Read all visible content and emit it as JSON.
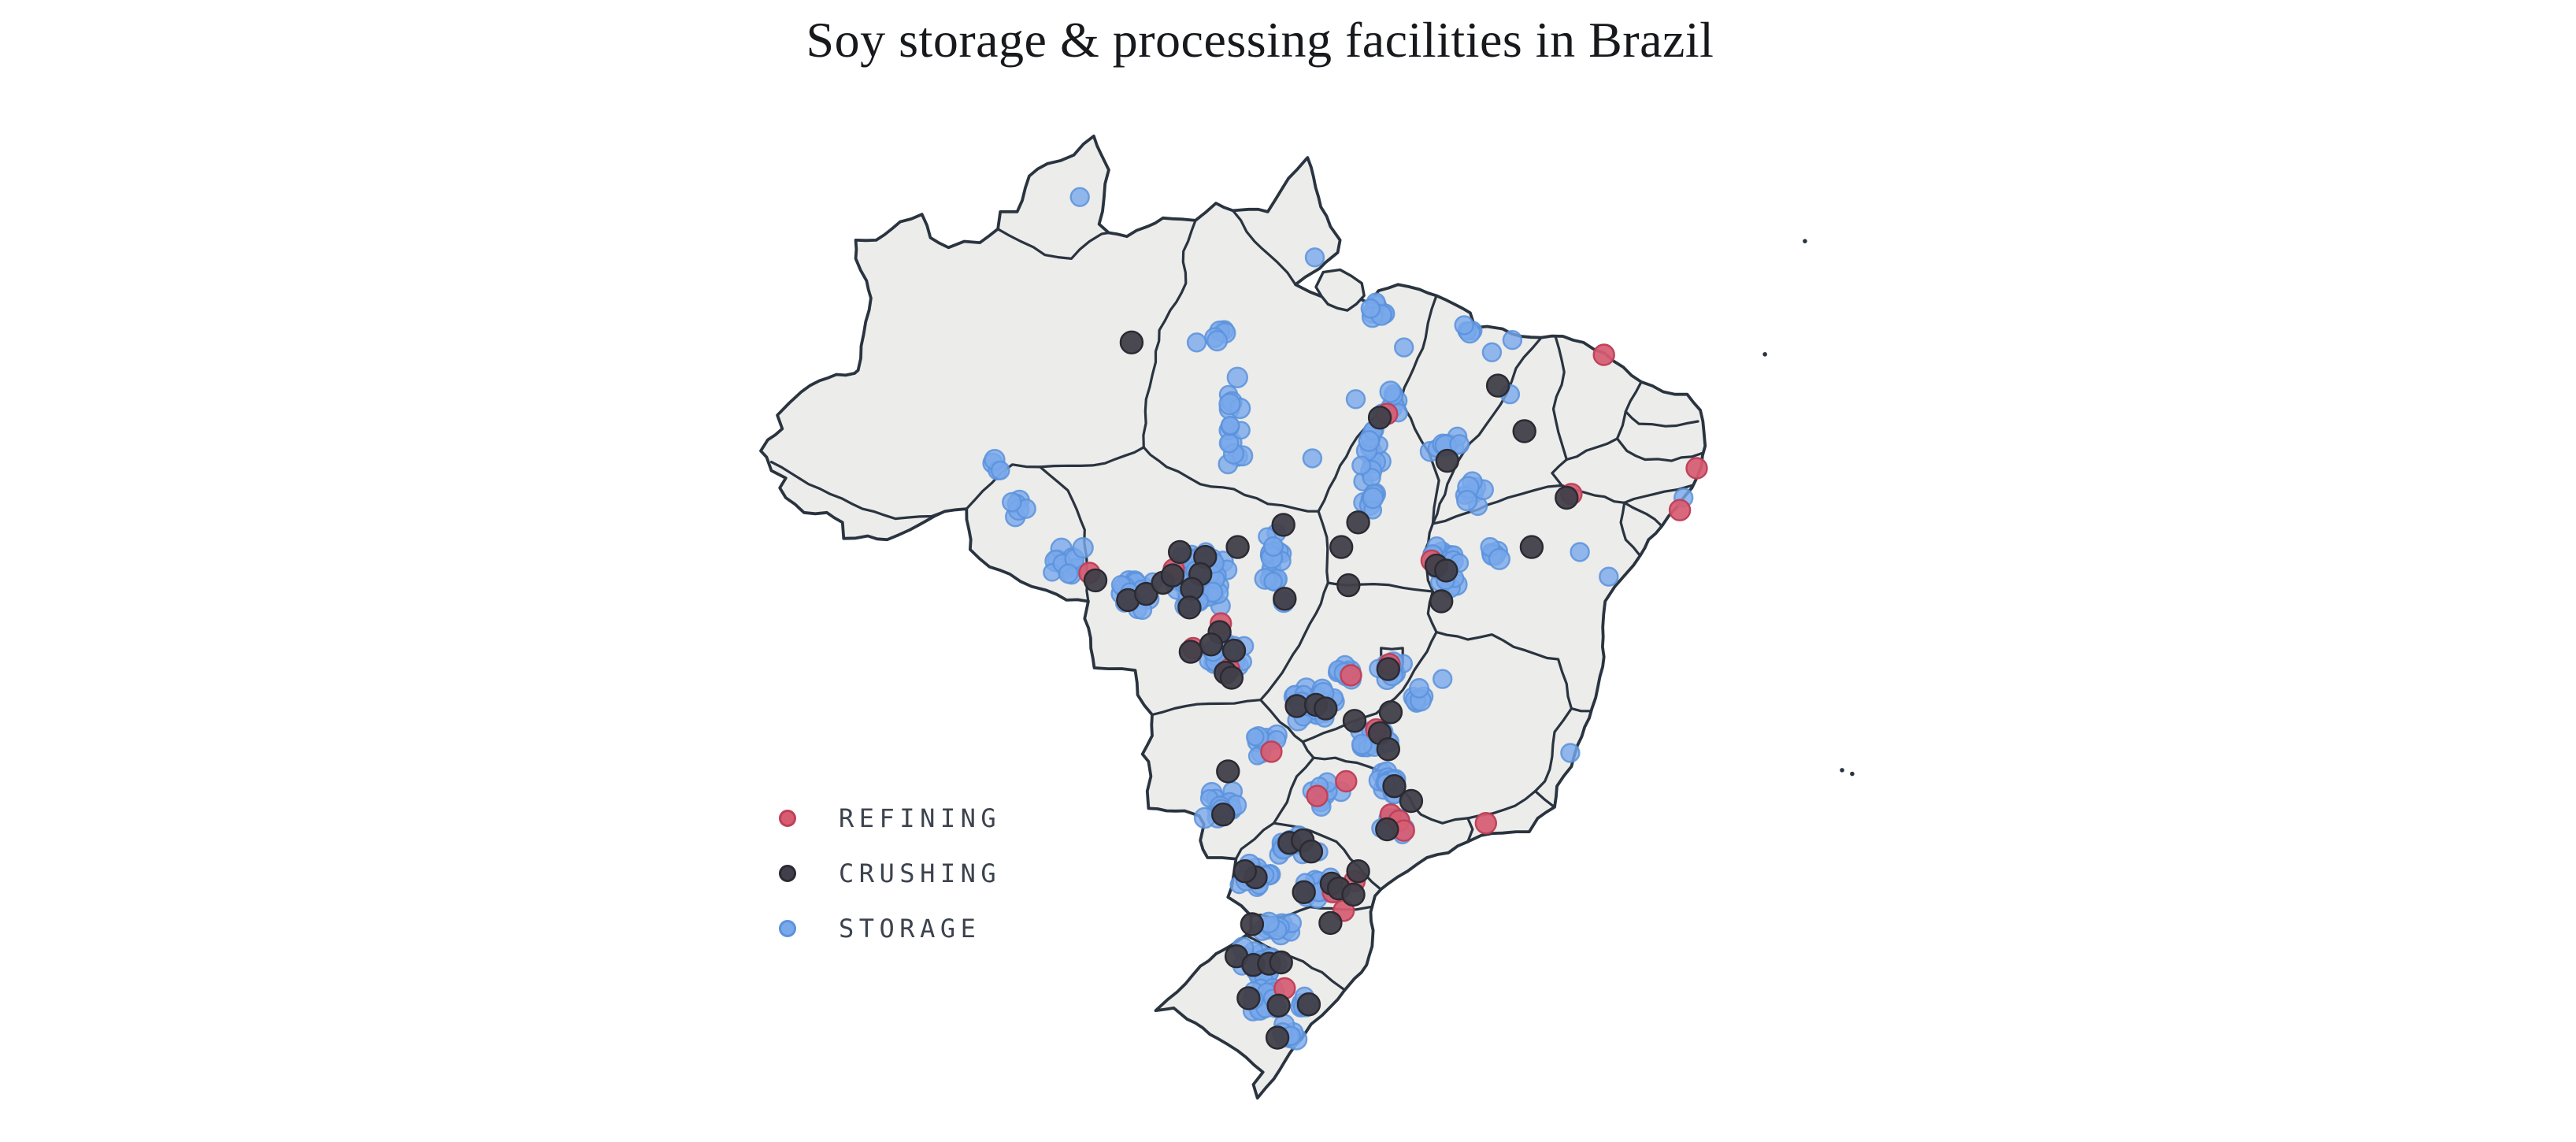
{
  "title": "Soy storage & processing facilities in Brazil",
  "colors": {
    "background": "#ffffff",
    "land": "#ECECEA",
    "state_border": "#2A3440",
    "title_text": "#17191D",
    "legend_text": "#3C434E"
  },
  "legend": {
    "position": "bottom-left",
    "items": [
      "REFINING",
      "CRUSHING",
      "STORAGE"
    ]
  },
  "chart_data": {
    "type": "scatter",
    "subtype": "dot-map",
    "basemap": "Brazil with state boundaries and offshore islands",
    "title": "Soy storage & processing facilities in Brazil",
    "grid": false,
    "series": [
      {
        "name": "REFINING",
        "color": "#D75C72",
        "stroke": "#BE4058",
        "radius": 13,
        "opacity": 0.93,
        "points": [
          [
            -60.35,
            -12.45
          ],
          [
            -56.85,
            -12.3
          ],
          [
            -54.9,
            -14.5
          ],
          [
            -56.05,
            -15.5
          ],
          [
            -54.55,
            -16.35
          ],
          [
            -48.0,
            -6.0
          ],
          [
            -46.15,
            -11.95
          ],
          [
            -40.35,
            -9.25
          ],
          [
            -39.0,
            -3.6
          ],
          [
            -35.15,
            -8.2
          ],
          [
            -35.85,
            -9.9
          ],
          [
            -49.5,
            -16.6
          ],
          [
            -47.9,
            -16.15
          ],
          [
            -48.45,
            -18.8
          ],
          [
            -52.8,
            -19.7
          ],
          [
            -49.7,
            -20.9
          ],
          [
            -50.9,
            -21.5
          ],
          [
            -47.85,
            -22.25
          ],
          [
            -47.5,
            -22.5
          ],
          [
            -47.3,
            -22.9
          ],
          [
            -43.9,
            -22.6
          ],
          [
            -49.35,
            -24.95
          ],
          [
            -50.25,
            -25.4
          ],
          [
            -49.8,
            -26.15
          ],
          [
            -52.25,
            -29.3
          ]
        ]
      },
      {
        "name": "CRUSHING",
        "color": "#413F49",
        "stroke": "#2B2A32",
        "radius": 14,
        "opacity": 0.95,
        "points": [
          [
            -58.6,
            -3.1
          ],
          [
            -43.4,
            -4.85
          ],
          [
            -42.3,
            -6.7
          ],
          [
            -48.3,
            -6.15
          ],
          [
            -45.5,
            -7.9
          ],
          [
            -49.2,
            -10.4
          ],
          [
            -49.9,
            -11.4
          ],
          [
            -49.6,
            -12.95
          ],
          [
            -52.3,
            -10.5
          ],
          [
            -45.95,
            -12.15
          ],
          [
            -45.55,
            -12.35
          ],
          [
            -45.75,
            -13.6
          ],
          [
            -42.0,
            -11.4
          ],
          [
            -40.55,
            -9.4
          ],
          [
            -60.1,
            -12.75
          ],
          [
            -58.75,
            -13.55
          ],
          [
            -58.0,
            -13.3
          ],
          [
            -57.3,
            -12.85
          ],
          [
            -56.9,
            -12.55
          ],
          [
            -56.6,
            -11.6
          ],
          [
            -55.55,
            -11.8
          ],
          [
            -55.75,
            -12.5
          ],
          [
            -56.1,
            -13.1
          ],
          [
            -56.2,
            -13.85
          ],
          [
            -54.2,
            -11.4
          ],
          [
            -54.95,
            -14.85
          ],
          [
            -54.35,
            -15.6
          ],
          [
            -55.3,
            -15.35
          ],
          [
            -56.15,
            -15.65
          ],
          [
            -54.7,
            -16.5
          ],
          [
            -54.45,
            -16.7
          ],
          [
            -52.25,
            -13.5
          ],
          [
            -51.75,
            -17.85
          ],
          [
            -50.95,
            -17.8
          ],
          [
            -50.55,
            -17.95
          ],
          [
            -49.35,
            -18.45
          ],
          [
            -47.95,
            -16.35
          ],
          [
            -47.85,
            -18.1
          ],
          [
            -48.3,
            -18.95
          ],
          [
            -47.95,
            -19.6
          ],
          [
            -54.8,
            -22.25
          ],
          [
            -54.6,
            -20.5
          ],
          [
            -47.7,
            -21.1
          ],
          [
            -47.0,
            -21.7
          ],
          [
            -48.0,
            -22.85
          ],
          [
            -52.05,
            -23.4
          ],
          [
            -51.5,
            -23.3
          ],
          [
            -51.15,
            -23.75
          ],
          [
            -53.45,
            -24.8
          ],
          [
            -53.9,
            -24.55
          ],
          [
            -50.3,
            -25.05
          ],
          [
            -50.0,
            -25.25
          ],
          [
            -51.45,
            -25.4
          ],
          [
            -49.2,
            -24.55
          ],
          [
            -49.4,
            -25.5
          ],
          [
            -53.6,
            -26.7
          ],
          [
            -50.35,
            -26.65
          ],
          [
            -54.25,
            -28.0
          ],
          [
            -53.55,
            -28.35
          ],
          [
            -52.9,
            -28.3
          ],
          [
            -52.4,
            -28.25
          ],
          [
            -53.75,
            -29.7
          ],
          [
            -52.5,
            -30.0
          ],
          [
            -51.25,
            -29.95
          ],
          [
            -52.55,
            -31.3
          ]
        ]
      },
      {
        "name": "STORAGE",
        "color": "#79A9EB",
        "stroke": "#5B92DC",
        "radius": 11.5,
        "opacity": 0.8,
        "clusters": [
          [
            -55.8,
            -12.6,
            1.25,
            1.4,
            78
          ],
          [
            -58.4,
            -13.4,
            0.8,
            0.8,
            18
          ],
          [
            -54.8,
            -15.8,
            0.95,
            0.75,
            22
          ],
          [
            -52.7,
            -11.8,
            0.6,
            1.9,
            20
          ],
          [
            -61.2,
            -11.9,
            0.75,
            0.8,
            12
          ],
          [
            -63.3,
            -9.7,
            0.55,
            0.5,
            6
          ],
          [
            -64.2,
            -8.1,
            0.4,
            0.4,
            4
          ],
          [
            -54.4,
            -6.2,
            0.5,
            2.3,
            16
          ],
          [
            -54.9,
            -2.8,
            0.45,
            0.35,
            5
          ],
          [
            -48.4,
            -1.8,
            0.7,
            0.55,
            8
          ],
          [
            -48.6,
            -8.6,
            0.55,
            2.6,
            24
          ],
          [
            -47.8,
            -5.7,
            0.5,
            0.8,
            8
          ],
          [
            -45.6,
            -7.5,
            0.7,
            0.6,
            9
          ],
          [
            -44.5,
            -2.7,
            0.3,
            0.25,
            3
          ],
          [
            -44.6,
            -9.3,
            0.7,
            0.9,
            9
          ],
          [
            -45.6,
            -12.2,
            0.7,
            1.0,
            22
          ],
          [
            -43.6,
            -11.6,
            0.5,
            0.5,
            6
          ],
          [
            -51.2,
            -17.8,
            1.05,
            0.8,
            30
          ],
          [
            -47.9,
            -16.3,
            0.7,
            0.6,
            13
          ],
          [
            -49.7,
            -16.4,
            0.6,
            0.55,
            10
          ],
          [
            -48.6,
            -19.2,
            0.9,
            0.6,
            13
          ],
          [
            -46.8,
            -17.5,
            0.5,
            0.6,
            6
          ],
          [
            -53.1,
            -19.3,
            0.7,
            0.7,
            10
          ],
          [
            -54.8,
            -21.9,
            0.85,
            0.8,
            16
          ],
          [
            -47.9,
            -20.9,
            0.8,
            0.65,
            13
          ],
          [
            -50.6,
            -21.5,
            0.8,
            0.6,
            9
          ],
          [
            -47.6,
            -22.7,
            0.7,
            0.55,
            11
          ],
          [
            -51.8,
            -23.5,
            1.05,
            0.55,
            20
          ],
          [
            -53.5,
            -24.7,
            0.75,
            0.6,
            16
          ],
          [
            -50.9,
            -25.2,
            0.85,
            0.6,
            16
          ],
          [
            -52.5,
            -26.9,
            0.85,
            0.5,
            11
          ],
          [
            -53.3,
            -28.3,
            1.05,
            0.7,
            30
          ],
          [
            -53.2,
            -29.8,
            0.95,
            0.65,
            16
          ],
          [
            -52.2,
            -31.2,
            0.6,
            0.55,
            8
          ],
          [
            -51.4,
            -29.9,
            0.45,
            0.4,
            6
          ]
        ],
        "points": [
          [
            -60.75,
            2.8
          ],
          [
            -51.0,
            0.35
          ],
          [
            -55.9,
            -3.1
          ],
          [
            -47.3,
            -3.3
          ],
          [
            -49.3,
            -5.4
          ],
          [
            -51.1,
            -7.8
          ],
          [
            -44.8,
            -2.4
          ],
          [
            -43.65,
            -3.5
          ],
          [
            -42.8,
            -3.0
          ],
          [
            -42.9,
            -5.2
          ],
          [
            -40.0,
            -11.6
          ],
          [
            -38.8,
            -12.6
          ],
          [
            -40.4,
            -19.75
          ],
          [
            -45.7,
            -16.75
          ],
          [
            -35.7,
            -9.4
          ]
        ]
      }
    ]
  }
}
